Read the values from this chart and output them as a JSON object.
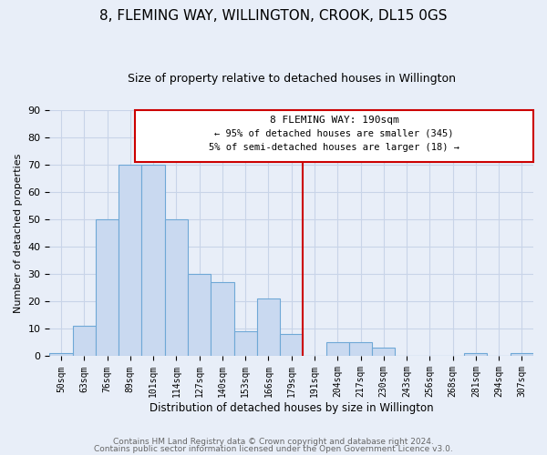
{
  "title": "8, FLEMING WAY, WILLINGTON, CROOK, DL15 0GS",
  "subtitle": "Size of property relative to detached houses in Willington",
  "xlabel": "Distribution of detached houses by size in Willington",
  "ylabel": "Number of detached properties",
  "bar_labels": [
    "50sqm",
    "63sqm",
    "76sqm",
    "89sqm",
    "101sqm",
    "114sqm",
    "127sqm",
    "140sqm",
    "153sqm",
    "166sqm",
    "179sqm",
    "191sqm",
    "204sqm",
    "217sqm",
    "230sqm",
    "243sqm",
    "256sqm",
    "268sqm",
    "281sqm",
    "294sqm",
    "307sqm"
  ],
  "bar_values": [
    1,
    11,
    50,
    70,
    70,
    50,
    30,
    27,
    9,
    21,
    8,
    0,
    5,
    5,
    3,
    0,
    0,
    0,
    1,
    0,
    1
  ],
  "bar_color": "#c9d9f0",
  "bar_edge_color": "#6fa8d6",
  "vline_x": 10.5,
  "vline_color": "#cc0000",
  "annotation_title": "8 FLEMING WAY: 190sqm",
  "annotation_line1": "← 95% of detached houses are smaller (345)",
  "annotation_line2": "5% of semi-detached houses are larger (18) →",
  "annotation_box_color": "#cc0000",
  "ylim": [
    0,
    90
  ],
  "yticks": [
    0,
    10,
    20,
    30,
    40,
    50,
    60,
    70,
    80,
    90
  ],
  "grid_color": "#c8d4e8",
  "bg_color": "#e8eef8",
  "footer1": "Contains HM Land Registry data © Crown copyright and database right 2024.",
  "footer2": "Contains public sector information licensed under the Open Government Licence v3.0."
}
